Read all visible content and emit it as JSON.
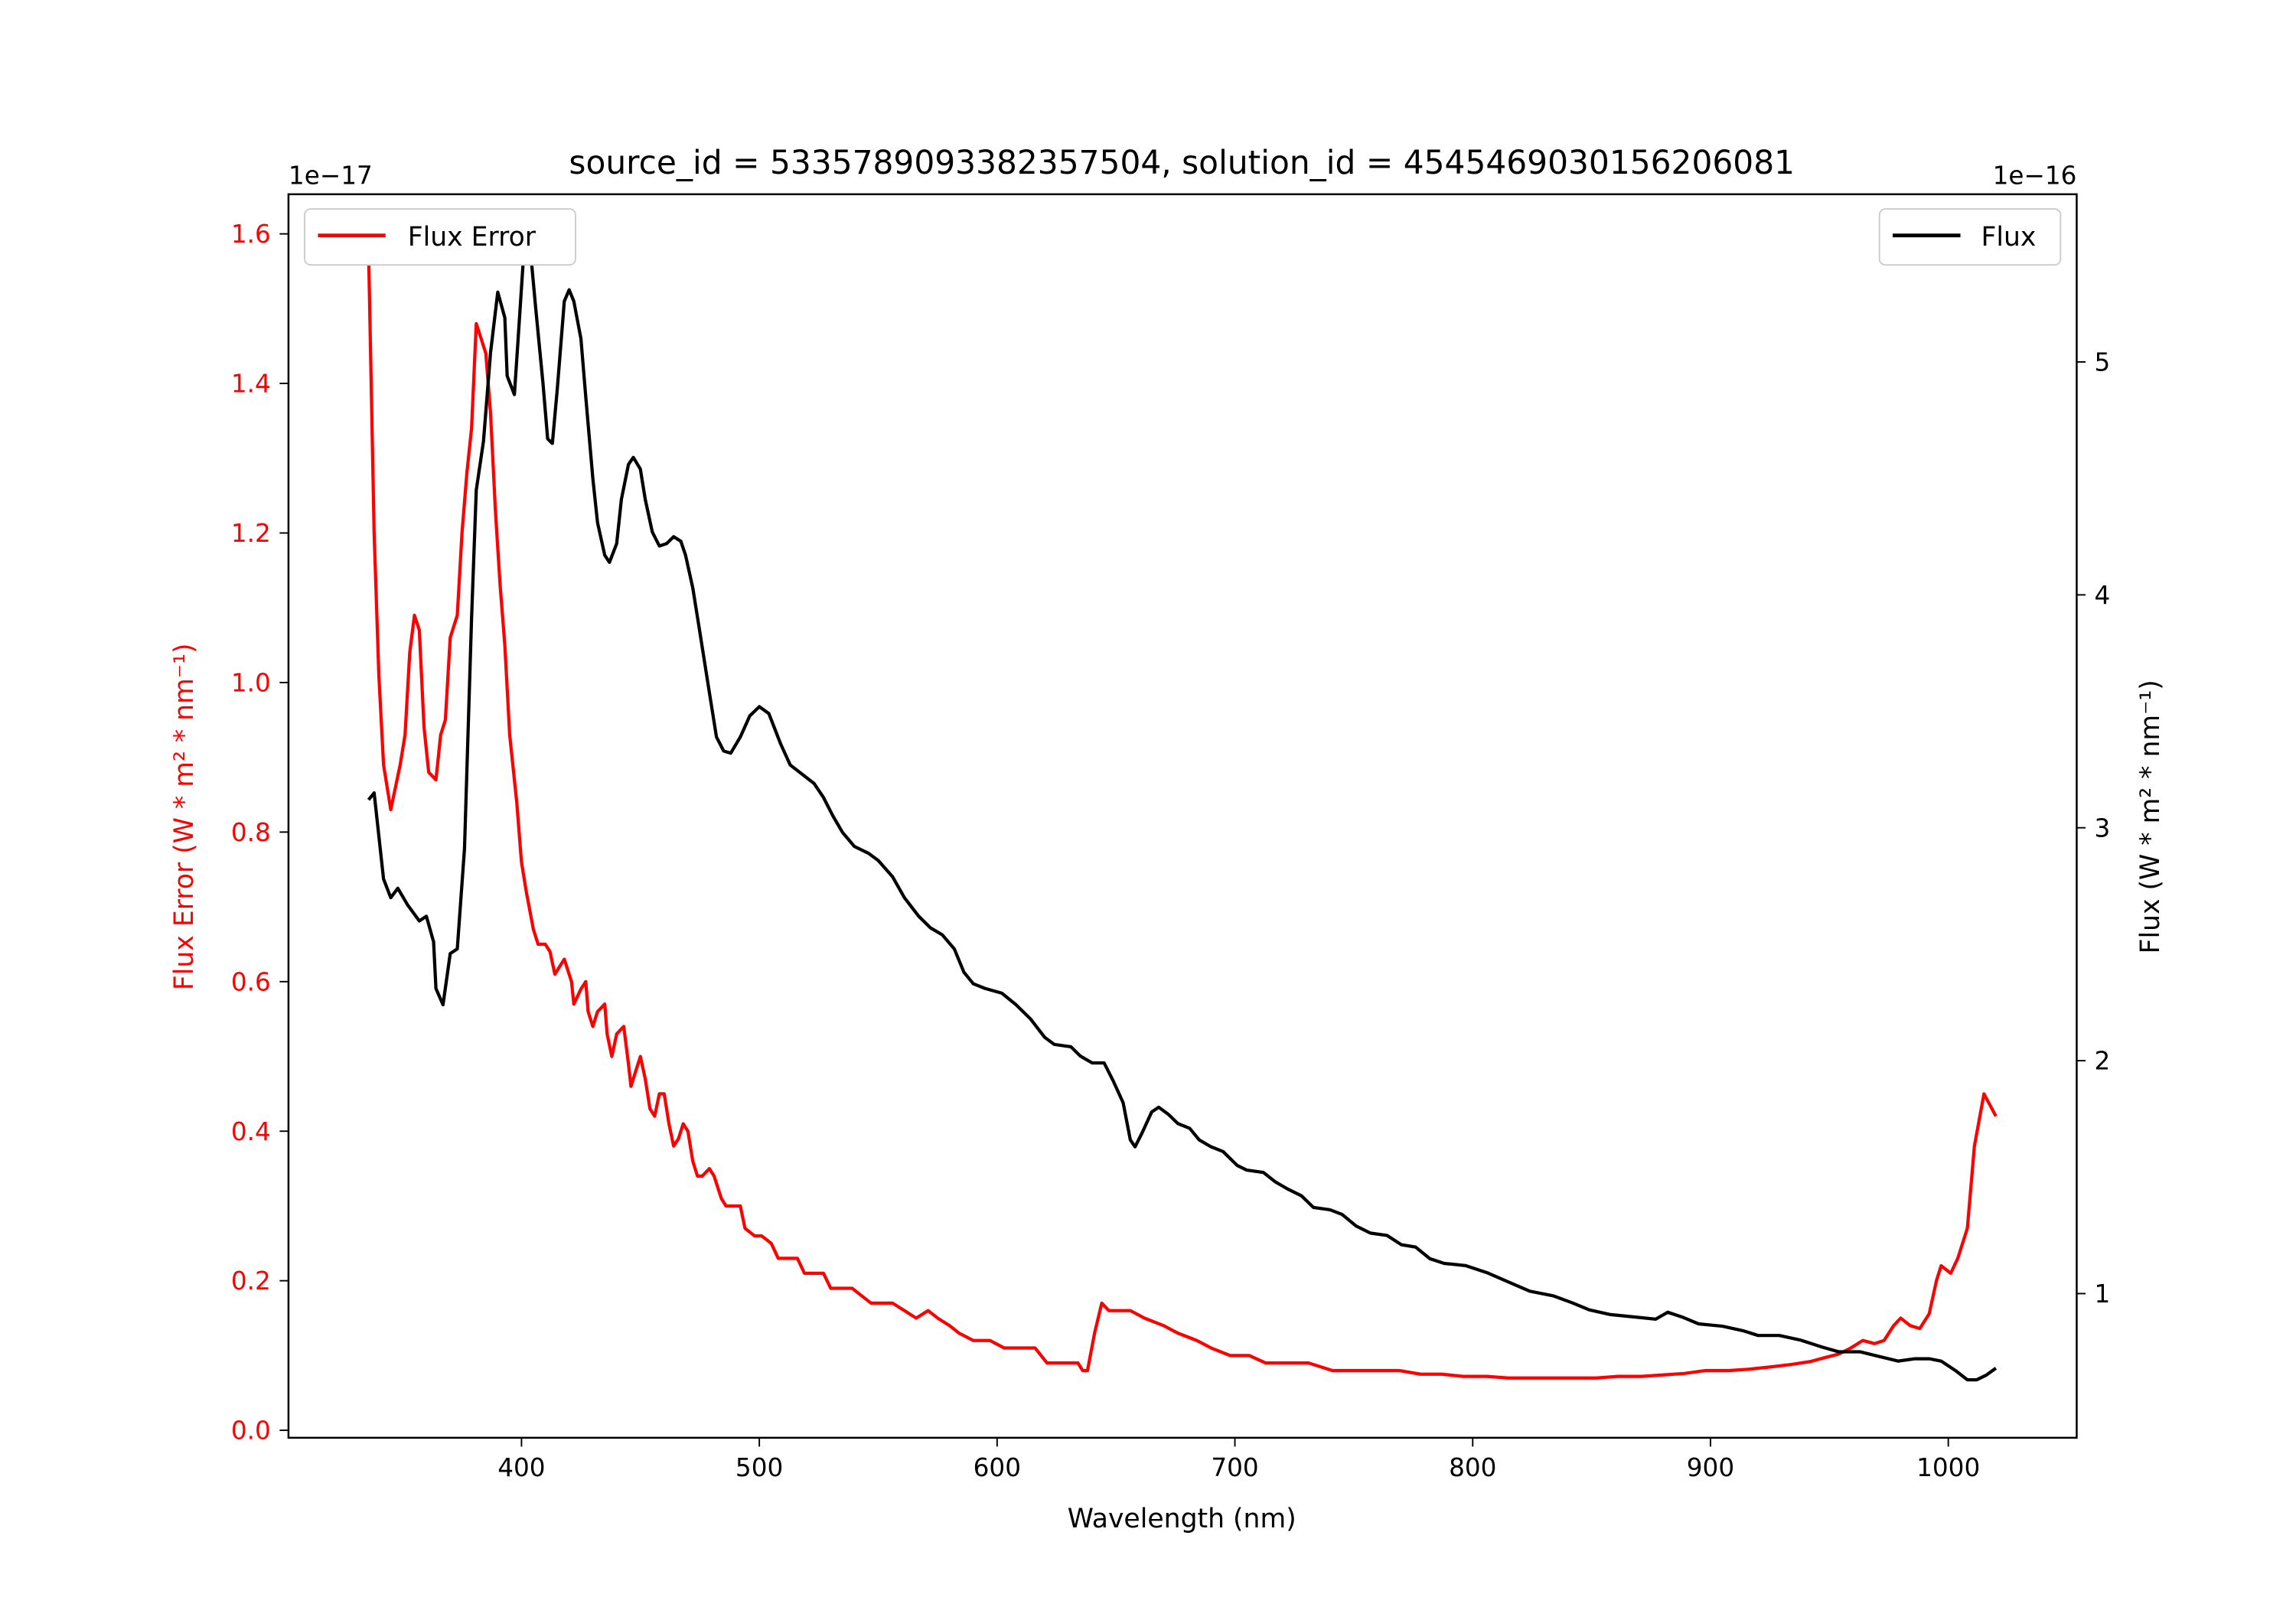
{
  "chart_data": {
    "type": "line",
    "title": "source_id = 5335789093382357504, solution_id = 4545469030156206081",
    "xlabel": "Wavelength (nm)",
    "ylabel_left": "Flux Error (W * m² * nm⁻¹)",
    "ylabel_right": "Flux (W * m² * nm⁻¹)",
    "offset_left": "1e−17",
    "offset_right": "1e−16",
    "xlim": [
      302,
      1054
    ],
    "ylim_left": [
      -0.01,
      1.653
    ],
    "ylim_right": [
      0.381,
      5.72
    ],
    "xticks": [
      400,
      500,
      600,
      700,
      800,
      900,
      1000
    ],
    "yticks_left": [
      "0.0",
      "0.2",
      "0.4",
      "0.6",
      "0.8",
      "1.0",
      "1.2",
      "1.4",
      "1.6"
    ],
    "yticks_right": [
      "1",
      "2",
      "3",
      "4",
      "5"
    ],
    "grid": false,
    "legend_left": {
      "label": "Flux Error",
      "placement": "upper-left"
    },
    "legend_right": {
      "label": "Flux",
      "placement": "upper-right"
    },
    "colors": {
      "flux_error": "#ff0000",
      "flux": "#000000"
    },
    "series": [
      {
        "name": "Flux Error",
        "axis": "left",
        "color": "#ff0000",
        "x": [
          335.7,
          338,
          340,
          342,
          345,
          349,
          351,
          353,
          355,
          357,
          359,
          361,
          364,
          366,
          368,
          370,
          373,
          375,
          377,
          379,
          381,
          383,
          385,
          387,
          389,
          391,
          393,
          395,
          398,
          400,
          402,
          405,
          407,
          410,
          412,
          414,
          416,
          418,
          421,
          422,
          425,
          427,
          428,
          430,
          432,
          435,
          436,
          438,
          440,
          443,
          445,
          446,
          448,
          450,
          452,
          454,
          456,
          458,
          460,
          462,
          464,
          466,
          468,
          470,
          472,
          474,
          476,
          479,
          481,
          484,
          486,
          488,
          492,
          494,
          498,
          501,
          505,
          508,
          512,
          516,
          519,
          523,
          527,
          530,
          535,
          539,
          543,
          547,
          552,
          556,
          561,
          566,
          571,
          575,
          580,
          584,
          590,
          597,
          603,
          610,
          616,
          621,
          628,
          634,
          636,
          638,
          641,
          644,
          647,
          651,
          656,
          662,
          670,
          676,
          684,
          690,
          698,
          706,
          713,
          722,
          731,
          741,
          750,
          759,
          769,
          778,
          787,
          796,
          806,
          815,
          824,
          834,
          843,
          852,
          861,
          871,
          880,
          889,
          898,
          908,
          917,
          926,
          934,
          942,
          948,
          954,
          959,
          964,
          969,
          973,
          977,
          980,
          984,
          988,
          992,
          995,
          997,
          1001,
          1004,
          1008,
          1011,
          1015,
          1020
        ],
        "y": [
          1.58,
          1.2,
          1.01,
          0.89,
          0.83,
          0.89,
          0.93,
          1.04,
          1.09,
          1.07,
          0.94,
          0.88,
          0.87,
          0.93,
          0.95,
          1.06,
          1.09,
          1.2,
          1.28,
          1.34,
          1.48,
          1.46,
          1.44,
          1.36,
          1.23,
          1.13,
          1.05,
          0.93,
          0.84,
          0.76,
          0.72,
          0.67,
          0.65,
          0.65,
          0.64,
          0.61,
          0.62,
          0.63,
          0.6,
          0.57,
          0.59,
          0.6,
          0.56,
          0.54,
          0.56,
          0.57,
          0.53,
          0.5,
          0.53,
          0.54,
          0.49,
          0.46,
          0.48,
          0.5,
          0.47,
          0.43,
          0.42,
          0.45,
          0.45,
          0.41,
          0.38,
          0.39,
          0.41,
          0.4,
          0.36,
          0.34,
          0.34,
          0.35,
          0.34,
          0.31,
          0.3,
          0.3,
          0.3,
          0.27,
          0.26,
          0.26,
          0.25,
          0.23,
          0.23,
          0.23,
          0.21,
          0.21,
          0.21,
          0.19,
          0.19,
          0.19,
          0.18,
          0.17,
          0.17,
          0.17,
          0.16,
          0.15,
          0.16,
          0.15,
          0.14,
          0.13,
          0.12,
          0.12,
          0.11,
          0.11,
          0.11,
          0.09,
          0.09,
          0.09,
          0.08,
          0.08,
          0.13,
          0.17,
          0.16,
          0.16,
          0.16,
          0.15,
          0.14,
          0.13,
          0.12,
          0.11,
          0.1,
          0.1,
          0.09,
          0.09,
          0.09,
          0.08,
          0.08,
          0.08,
          0.08,
          0.075,
          0.075,
          0.072,
          0.072,
          0.07,
          0.07,
          0.07,
          0.07,
          0.07,
          0.072,
          0.072,
          0.074,
          0.076,
          0.08,
          0.08,
          0.082,
          0.085,
          0.088,
          0.092,
          0.097,
          0.102,
          0.11,
          0.12,
          0.116,
          0.12,
          0.14,
          0.15,
          0.14,
          0.136,
          0.156,
          0.2,
          0.22,
          0.21,
          0.23,
          0.27,
          0.38,
          0.45,
          0.42
        ]
      },
      {
        "name": "Flux",
        "axis": "right",
        "color": "#000000",
        "x": [
          335.7,
          338,
          342,
          345,
          348,
          352,
          357,
          360,
          363,
          364,
          367,
          370,
          373,
          376,
          379,
          381,
          384,
          387,
          390,
          393,
          394,
          397,
          398,
          401,
          404,
          406,
          409,
          411,
          413,
          415,
          418,
          420,
          422,
          425,
          427,
          430,
          432,
          435,
          437,
          440,
          442,
          445,
          447,
          450,
          452,
          455,
          458,
          461,
          464,
          467,
          469,
          472,
          475,
          479,
          482,
          485,
          488,
          492,
          496,
          500,
          504,
          509,
          513,
          518,
          523,
          527,
          531,
          535,
          540,
          546,
          550,
          556,
          561,
          567,
          572,
          577,
          582,
          586,
          590,
          595,
          602,
          608,
          614,
          620,
          624,
          631,
          635,
          640,
          645,
          649,
          653,
          656,
          658,
          661,
          665,
          668,
          672,
          676,
          681,
          685,
          690,
          695,
          701,
          705,
          712,
          717,
          722,
          728,
          733,
          740,
          745,
          751,
          757,
          764,
          770,
          776,
          782,
          788,
          797,
          806,
          815,
          824,
          834,
          842,
          849,
          858,
          868,
          877,
          882,
          888,
          895,
          905,
          914,
          920,
          929,
          938,
          947,
          954,
          963,
          971,
          979,
          986,
          992,
          997,
          1003,
          1008,
          1012,
          1016,
          1020
        ],
        "y": [
          3.12,
          3.15,
          2.78,
          2.7,
          2.74,
          2.67,
          2.6,
          2.62,
          2.51,
          2.31,
          2.24,
          2.46,
          2.48,
          2.91,
          3.9,
          4.45,
          4.66,
          5.04,
          5.3,
          5.19,
          4.94,
          4.86,
          5.01,
          5.48,
          5.45,
          5.23,
          4.91,
          4.67,
          4.65,
          4.88,
          5.26,
          5.31,
          5.26,
          5.1,
          4.85,
          4.5,
          4.31,
          4.17,
          4.14,
          4.22,
          4.41,
          4.56,
          4.59,
          4.54,
          4.41,
          4.27,
          4.21,
          4.22,
          4.25,
          4.23,
          4.17,
          4.03,
          3.84,
          3.58,
          3.39,
          3.33,
          3.32,
          3.39,
          3.48,
          3.52,
          3.49,
          3.36,
          3.27,
          3.23,
          3.19,
          3.13,
          3.05,
          2.98,
          2.92,
          2.89,
          2.86,
          2.79,
          2.7,
          2.62,
          2.57,
          2.54,
          2.48,
          2.38,
          2.33,
          2.31,
          2.29,
          2.24,
          2.18,
          2.1,
          2.07,
          2.06,
          2.02,
          1.99,
          1.99,
          1.91,
          1.82,
          1.66,
          1.63,
          1.69,
          1.78,
          1.8,
          1.77,
          1.73,
          1.71,
          1.66,
          1.63,
          1.61,
          1.55,
          1.53,
          1.52,
          1.48,
          1.45,
          1.42,
          1.37,
          1.36,
          1.34,
          1.29,
          1.26,
          1.25,
          1.21,
          1.2,
          1.15,
          1.13,
          1.12,
          1.09,
          1.05,
          1.01,
          0.99,
          0.96,
          0.93,
          0.91,
          0.9,
          0.89,
          0.92,
          0.9,
          0.87,
          0.86,
          0.84,
          0.82,
          0.82,
          0.8,
          0.77,
          0.75,
          0.75,
          0.73,
          0.71,
          0.72,
          0.72,
          0.71,
          0.67,
          0.63,
          0.63,
          0.65,
          0.68
        ]
      }
    ]
  }
}
